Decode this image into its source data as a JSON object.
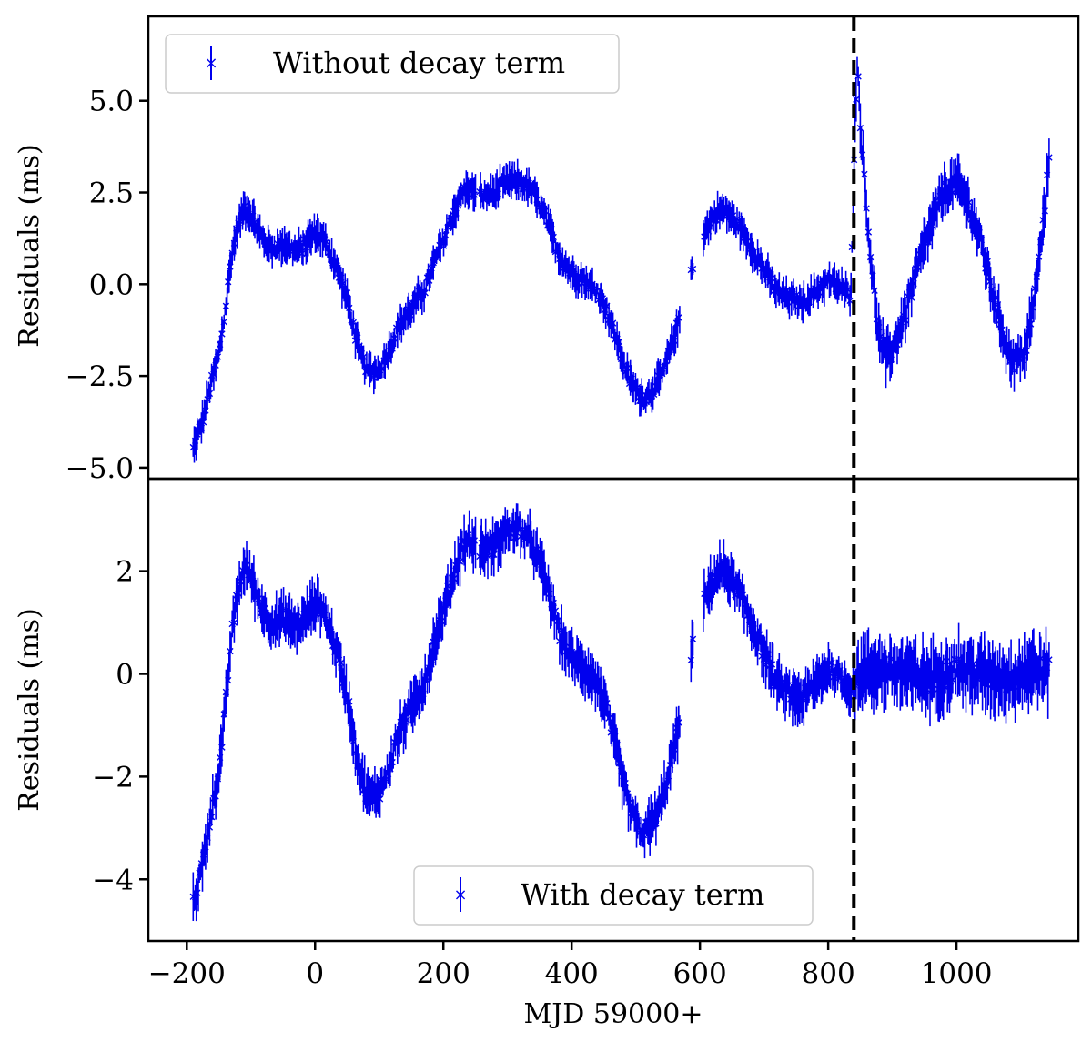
{
  "chart_data": [
    {
      "type": "scatter",
      "panel": "top",
      "ylabel": "Residuals (ms)",
      "xlim": [
        -260,
        1190
      ],
      "ylim": [
        -5.3,
        7.3
      ],
      "yticks": [
        -5.0,
        -2.5,
        0.0,
        2.5,
        5.0
      ],
      "ytick_labels": [
        "−5.0",
        "−2.5",
        "0.0",
        "2.5",
        "5.0"
      ],
      "marker_color": "#0000ee",
      "legend": {
        "label": "Without decay term",
        "position": "top-left"
      },
      "vline": {
        "x": 840,
        "style": "dashed",
        "color": "#000000"
      },
      "curve": {
        "x": [
          -190,
          -175,
          -165,
          -150,
          -140,
          -130,
          -120,
          -110,
          -100,
          -90,
          -80,
          -70,
          -60,
          -50,
          -40,
          -30,
          -20,
          -10,
          0,
          10,
          20,
          30,
          40,
          50,
          60,
          70,
          80,
          90,
          100,
          110,
          120,
          130,
          140,
          150,
          160,
          170,
          180,
          190,
          200,
          210,
          220,
          230,
          240,
          260,
          280,
          300,
          320,
          340,
          360,
          380,
          400,
          420,
          440,
          450,
          460,
          470,
          480,
          490,
          500,
          510,
          520,
          530,
          540,
          550,
          560,
          570,
          580,
          590,
          600,
          610,
          620,
          630,
          640,
          650,
          660,
          680,
          700,
          720,
          740,
          760,
          780,
          800,
          820,
          835,
          845,
          850,
          860,
          870,
          880,
          890,
          900,
          920,
          940,
          960,
          980,
          1000,
          1020,
          1040,
          1060,
          1080,
          1090,
          1100,
          1110,
          1120,
          1130,
          1140,
          1145
        ],
        "y": [
          -4.5,
          -3.7,
          -2.9,
          -1.9,
          -0.7,
          0.8,
          1.6,
          2.1,
          1.9,
          1.5,
          1.2,
          1.0,
          1.0,
          1.1,
          1.0,
          0.9,
          1.0,
          1.2,
          1.4,
          1.3,
          1.0,
          0.6,
          0.1,
          -0.4,
          -1.2,
          -1.9,
          -2.3,
          -2.4,
          -2.3,
          -2.0,
          -1.6,
          -1.2,
          -0.9,
          -0.7,
          -0.4,
          -0.2,
          0.3,
          0.8,
          1.2,
          1.7,
          2.1,
          2.5,
          2.6,
          2.4,
          2.5,
          2.8,
          2.8,
          2.5,
          1.8,
          0.8,
          0.3,
          0.1,
          -0.2,
          -0.5,
          -1.0,
          -1.5,
          -2.1,
          -2.6,
          -2.9,
          -3.1,
          -3.0,
          -2.8,
          -2.5,
          -2.0,
          -1.4,
          -0.9,
          0.0,
          0.6,
          1.2,
          1.5,
          1.8,
          2.0,
          2.0,
          1.8,
          1.6,
          1.0,
          0.4,
          -0.2,
          -0.4,
          -0.5,
          -0.2,
          0.1,
          -0.1,
          -0.3,
          6.2,
          4.5,
          2.0,
          0.0,
          -1.5,
          -2.0,
          -1.8,
          -0.8,
          0.5,
          1.6,
          2.5,
          2.8,
          2.1,
          1.0,
          -0.5,
          -1.8,
          -2.1,
          -2.0,
          -1.6,
          -0.6,
          0.8,
          2.4,
          3.8
        ]
      }
    },
    {
      "type": "scatter",
      "panel": "bottom",
      "xlabel": "MJD 59000+",
      "ylabel": "Residuals (ms)",
      "xlim": [
        -260,
        1190
      ],
      "ylim": [
        -5.2,
        3.8
      ],
      "xticks": [
        -200,
        0,
        200,
        400,
        600,
        800,
        1000
      ],
      "xtick_labels": [
        "−200",
        "0",
        "200",
        "400",
        "600",
        "800",
        "1000"
      ],
      "yticks": [
        -4,
        -2,
        0,
        2
      ],
      "ytick_labels": [
        "−4",
        "−2",
        "0",
        "2"
      ],
      "marker_color": "#0000ee",
      "legend": {
        "label": "With decay term",
        "position": "bottom-center"
      },
      "vline": {
        "x": 840,
        "style": "dashed",
        "color": "#000000"
      },
      "curve": {
        "x": [
          -190,
          -175,
          -165,
          -150,
          -140,
          -130,
          -120,
          -110,
          -100,
          -90,
          -80,
          -70,
          -60,
          -50,
          -40,
          -30,
          -20,
          -10,
          0,
          10,
          20,
          30,
          40,
          50,
          60,
          70,
          80,
          90,
          100,
          110,
          120,
          130,
          140,
          150,
          160,
          170,
          180,
          190,
          200,
          210,
          220,
          230,
          240,
          260,
          280,
          300,
          320,
          340,
          360,
          380,
          400,
          420,
          440,
          450,
          460,
          470,
          480,
          490,
          500,
          510,
          520,
          530,
          540,
          550,
          560,
          570,
          580,
          590,
          600,
          610,
          620,
          630,
          640,
          650,
          660,
          680,
          700,
          720,
          740,
          760,
          780,
          800,
          820,
          835,
          850,
          880,
          920,
          960,
          1000,
          1040,
          1080,
          1120,
          1145
        ],
        "y": [
          -4.5,
          -3.7,
          -2.9,
          -1.9,
          -0.7,
          0.8,
          1.6,
          2.1,
          1.9,
          1.5,
          1.2,
          1.0,
          1.0,
          1.1,
          1.0,
          0.9,
          1.0,
          1.2,
          1.4,
          1.3,
          1.0,
          0.6,
          0.1,
          -0.4,
          -1.2,
          -1.9,
          -2.3,
          -2.4,
          -2.3,
          -2.0,
          -1.6,
          -1.2,
          -0.9,
          -0.7,
          -0.4,
          -0.2,
          0.3,
          0.8,
          1.2,
          1.7,
          2.1,
          2.5,
          2.6,
          2.4,
          2.5,
          2.8,
          2.8,
          2.5,
          1.8,
          0.8,
          0.3,
          0.1,
          -0.2,
          -0.5,
          -1.0,
          -1.5,
          -2.1,
          -2.6,
          -2.9,
          -3.1,
          -3.0,
          -2.8,
          -2.5,
          -2.0,
          -1.4,
          -0.9,
          0.0,
          0.6,
          1.2,
          1.5,
          1.8,
          2.0,
          2.0,
          1.8,
          1.6,
          1.0,
          0.4,
          -0.2,
          -0.4,
          -0.5,
          -0.2,
          0.1,
          -0.1,
          -0.3,
          0.0,
          0.1,
          0.0,
          -0.1,
          0.1,
          0.0,
          -0.1,
          0.1,
          0.0
        ]
      }
    }
  ]
}
